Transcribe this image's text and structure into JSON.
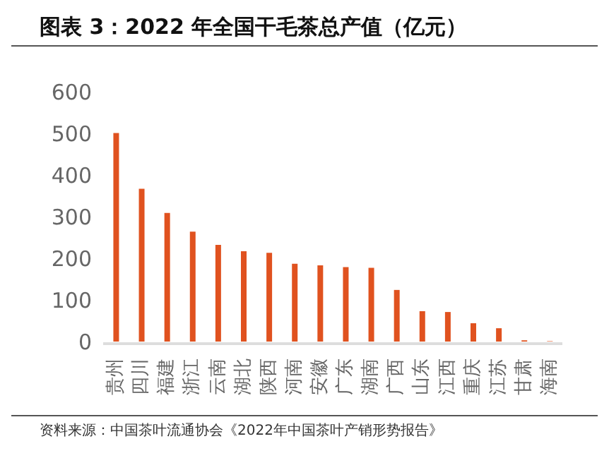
{
  "chart_data": {
    "type": "bar",
    "title": "图表 3：2022 年全国干毛茶总产值（亿元）",
    "categories": [
      "贵州",
      "四川",
      "福建",
      "浙江",
      "云南",
      "湖北",
      "陕西",
      "河南",
      "安徽",
      "广东",
      "湖南",
      "广西",
      "山东",
      "江西",
      "重庆",
      "江苏",
      "甘肃",
      "海南"
    ],
    "values": [
      501,
      367,
      309,
      264,
      232,
      217,
      213,
      187,
      183,
      179,
      177,
      124,
      73,
      71,
      44,
      32,
      3,
      1
    ],
    "color": "#e0521f",
    "ylim": [
      0,
      600
    ],
    "yticks": [
      0,
      100,
      200,
      300,
      400,
      500,
      600
    ],
    "grid": false,
    "legend": false,
    "annotations": [
      "资料来源：中国茶叶流通协会《2022年中国茶叶产销形势报告》"
    ]
  }
}
